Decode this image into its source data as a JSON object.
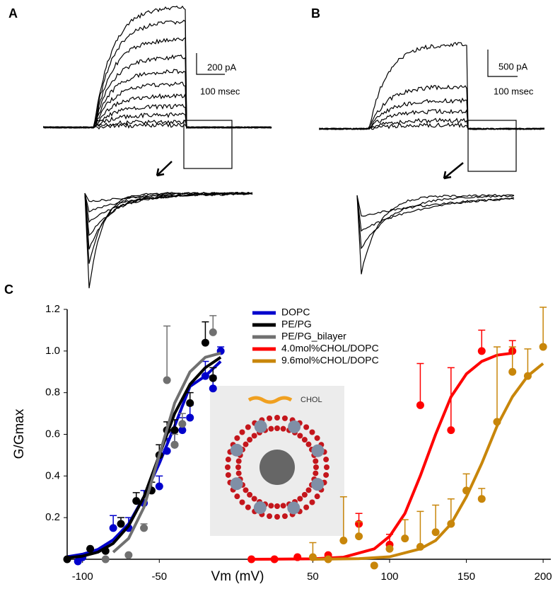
{
  "panel_labels": [
    "A",
    "B",
    "C"
  ],
  "scale_bars": [
    {
      "current": "200 pA",
      "time": "100 msec"
    },
    {
      "current": "500 pA",
      "time": "100 msec"
    }
  ],
  "inset_label": "CHOL",
  "chart_data": {
    "type": "scatter",
    "x_label": "Vm (mV)",
    "y_label": "G/Gmax",
    "xlim": [
      -110,
      205
    ],
    "ylim": [
      0,
      1.2
    ],
    "xticks": [
      -100,
      -50,
      50,
      100,
      150,
      200
    ],
    "yticks": [
      0.2,
      0.4,
      0.6,
      0.8,
      {
        "value": 1,
        "label": "1.0"
      },
      1.2
    ],
    "series": [
      {
        "name": "DOPC",
        "color": "#0000cc",
        "x": [
          -103,
          -100,
          -80,
          -70,
          -60,
          -50,
          -45,
          -40,
          -35,
          -30,
          -20,
          -15,
          -10
        ],
        "values": [
          -0.01,
          0.01,
          0.15,
          0.15,
          0.27,
          0.35,
          0.52,
          0.55,
          0.62,
          0.68,
          0.88,
          0.82,
          1.0
        ],
        "errors": [
          0,
          0,
          0.06,
          0.05,
          0.06,
          0.05,
          0.06,
          0.06,
          0.06,
          0.06,
          0.07,
          0.06,
          0.02
        ],
        "fit_x": [
          -110,
          -100,
          -90,
          -80,
          -70,
          -60,
          -50,
          -40,
          -30,
          -20,
          -10
        ],
        "fit_values": [
          0.012,
          0.024,
          0.047,
          0.093,
          0.17,
          0.3,
          0.46,
          0.64,
          0.83,
          0.88,
          0.95
        ]
      },
      {
        "name": "PE/PG",
        "color": "#000000",
        "x": [
          -110,
          -95,
          -85,
          -75,
          -65,
          -55,
          -50,
          -45,
          -40,
          -30,
          -20,
          -15
        ],
        "values": [
          0,
          0.05,
          0.04,
          0.17,
          0.28,
          0.33,
          0.5,
          0.62,
          0.62,
          0.75,
          1.04,
          0.87
        ],
        "errors": [
          0,
          0,
          0,
          0.03,
          0.04,
          0.04,
          0.05,
          0.04,
          0.05,
          0.05,
          0.1,
          0.05
        ],
        "fit_x": [
          -110,
          -100,
          -90,
          -80,
          -70,
          -60,
          -50,
          -40,
          -30,
          -20,
          -10
        ],
        "fit_values": [
          0.007,
          0.015,
          0.034,
          0.076,
          0.16,
          0.3,
          0.5,
          0.7,
          0.84,
          0.92,
          0.97
        ]
      },
      {
        "name": "PE/PG_bilayer",
        "color": "#707070",
        "x": [
          -85,
          -70,
          -60,
          -45,
          -40,
          -35,
          -15
        ],
        "values": [
          0,
          0.02,
          0.15,
          0.86,
          0.55,
          0.65,
          1.09
        ],
        "errors": [
          0,
          0,
          0.02,
          0.26,
          0.05,
          0.05,
          0.08
        ],
        "fit_x": [
          -80,
          -70,
          -60,
          -50,
          -40,
          -30,
          -20,
          -10
        ],
        "fit_values": [
          0.034,
          0.1,
          0.25,
          0.5,
          0.75,
          0.9,
          0.97,
          0.99
        ]
      },
      {
        "name": "4.0mol%CHOL/DOPC",
        "color": "#ff0000",
        "x": [
          10,
          25,
          40,
          60,
          80,
          100,
          120,
          140,
          160,
          180
        ],
        "values": [
          0,
          0,
          0.01,
          0.02,
          0.17,
          0.07,
          0.74,
          0.62,
          1.0,
          1.0
        ],
        "errors": [
          0,
          0,
          0,
          0,
          0.05,
          0.05,
          0.2,
          0.3,
          0.1,
          0.05
        ],
        "fit_x": [
          10,
          50,
          70,
          90,
          100,
          110,
          120,
          130,
          140,
          150,
          160,
          170,
          180
        ],
        "fit_values": [
          0,
          0.002,
          0.01,
          0.05,
          0.11,
          0.22,
          0.4,
          0.6,
          0.78,
          0.89,
          0.95,
          0.98,
          0.99
        ]
      },
      {
        "name": "9.6mol%CHOL/DOPC",
        "color": "#c8860a",
        "x": [
          50,
          60,
          70,
          80,
          90,
          100,
          110,
          120,
          130,
          140,
          150,
          160,
          170,
          180,
          190,
          200
        ],
        "values": [
          0.01,
          0.0,
          0.09,
          0.11,
          -0.03,
          0.05,
          0.1,
          0.06,
          0.13,
          0.17,
          0.33,
          0.29,
          0.66,
          0.9,
          0.88,
          1.02
        ],
        "errors": [
          0.07,
          0,
          0.21,
          0.07,
          0,
          0,
          0.09,
          0.17,
          0.13,
          0.12,
          0.08,
          0.05,
          0.36,
          0.12,
          0.13,
          0.19
        ],
        "fit_x": [
          50,
          80,
          100,
          120,
          130,
          140,
          150,
          160,
          170,
          180,
          190,
          200
        ],
        "fit_values": [
          0,
          0.003,
          0.012,
          0.05,
          0.09,
          0.17,
          0.3,
          0.46,
          0.64,
          0.78,
          0.88,
          0.94
        ]
      }
    ]
  }
}
